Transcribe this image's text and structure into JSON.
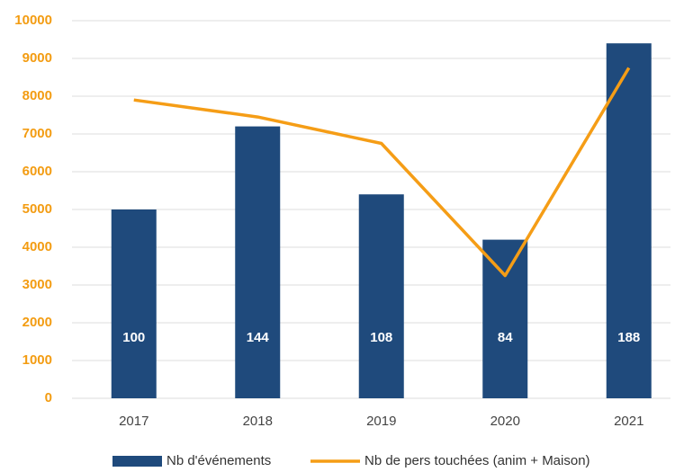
{
  "chart_data": {
    "type": "bar_line",
    "categories": [
      "2017",
      "2018",
      "2019",
      "2020",
      "2021"
    ],
    "series": [
      {
        "name": "Nb d'événements",
        "type": "bar",
        "color": "#1f4a7c",
        "axis": "y2",
        "values": [
          100,
          144,
          108,
          84,
          188
        ]
      },
      {
        "name": "Nb de pers touchées (anim + Maison)",
        "type": "line",
        "color": "#f59d16",
        "values": [
          7900,
          7450,
          6750,
          3250,
          8750
        ]
      }
    ],
    "ylim": [
      0,
      10000
    ],
    "yticks": [
      0,
      1000,
      2000,
      3000,
      4000,
      5000,
      6000,
      7000,
      8000,
      9000,
      10000
    ],
    "y2lim": [
      0,
      200
    ],
    "grid": true
  }
}
